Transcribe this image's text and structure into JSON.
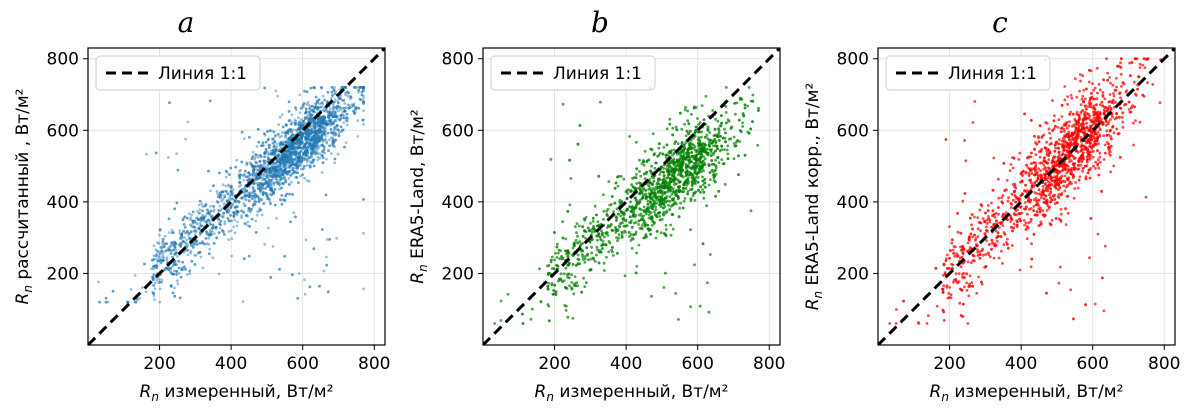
{
  "chart_data": [
    {
      "type": "scatter",
      "panel_label": "a",
      "xlabel_symbol": "R",
      "xlabel_sub": "n",
      "xlabel_text": " измеренный, Вт/м²",
      "ylabel_symbol": "R",
      "ylabel_sub": "n",
      "ylabel_text": " рассчитанный , Вт/м²",
      "xlim": [
        0,
        830
      ],
      "ylim": [
        0,
        830
      ],
      "xticks": [
        200,
        400,
        600,
        800
      ],
      "yticks": [
        200,
        400,
        600,
        800
      ],
      "grid": true,
      "legend_placement": "upper-left",
      "legend_label": "Линия 1:1",
      "point_color": "#1f77b4",
      "identity_line": [
        0,
        830
      ],
      "cloud": {
        "slope": 0.84,
        "intercept": 60,
        "spread": 55,
        "n": 3200
      },
      "x_distribution_peak": 600,
      "x_range_observed": [
        20,
        770
      ],
      "y_range_observed": [
        120,
        720
      ]
    },
    {
      "type": "scatter",
      "panel_label": "b",
      "xlabel_symbol": "R",
      "xlabel_sub": "n",
      "xlabel_text": " измеренный, Вт/м²",
      "ylabel_symbol": "R",
      "ylabel_sub": "n",
      "ylabel_text": " ERA5-Land, Вт/м²",
      "xlim": [
        0,
        830
      ],
      "ylim": [
        0,
        830
      ],
      "xticks": [
        200,
        400,
        600,
        800
      ],
      "yticks": [
        200,
        400,
        600,
        800
      ],
      "grid": true,
      "legend_placement": "upper-left",
      "legend_label": "Линия 1:1",
      "point_color": "#008000",
      "identity_line": [
        0,
        830
      ],
      "cloud": {
        "slope": 0.78,
        "intercept": 50,
        "spread": 65,
        "n": 3200
      },
      "x_distribution_peak": 560,
      "x_range_observed": [
        20,
        770
      ],
      "y_range_observed": [
        60,
        720
      ]
    },
    {
      "type": "scatter",
      "panel_label": "c",
      "xlabel_symbol": "R",
      "xlabel_sub": "n",
      "xlabel_text": " измеренный, Вт/м²",
      "ylabel_symbol": "R",
      "ylabel_sub": "n",
      "ylabel_text": " ERA5-Land корр., Вт/м²",
      "xlim": [
        0,
        830
      ],
      "ylim": [
        0,
        830
      ],
      "xticks": [
        200,
        400,
        600,
        800
      ],
      "yticks": [
        200,
        400,
        600,
        800
      ],
      "grid": true,
      "legend_placement": "upper-left",
      "legend_label": "Линия 1:1",
      "point_color": "#ff0000",
      "identity_line": [
        0,
        830
      ],
      "cloud": {
        "slope": 0.98,
        "intercept": 10,
        "spread": 75,
        "n": 3200
      },
      "x_distribution_peak": 560,
      "x_range_observed": [
        20,
        790
      ],
      "y_range_observed": [
        60,
        800
      ]
    }
  ]
}
